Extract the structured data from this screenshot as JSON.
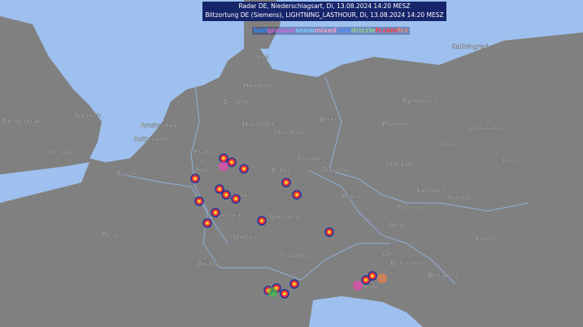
{
  "header": {
    "line1": "Radar DE, Niederschlagsart, Di, 13.08.2024 14:20 MESZ",
    "line2": "Blitzortung DE (Siemens), LIGHTNING_LASTHOUR, Di, 13.08.2024 14:20 MESZ"
  },
  "legend": [
    "hail",
    "graupel",
    "snow",
    "mixed",
    "rain",
    "drizzle",
    "fr.rain",
    "fr.r"
  ],
  "cities": [
    "Kiel",
    "Hamburg",
    "Bremen",
    "Hannover",
    "Berlin",
    "Amsterdam",
    "Rotterdam",
    "Magdeburg",
    "Leipzig",
    "Dresden",
    "Essen",
    "Köln",
    "Frankfurt",
    "Erfurt",
    "Mannheim",
    "Praha",
    "Nürnberg",
    "Stuttgart",
    "München",
    "Wien",
    "Bratislava",
    "Budapest",
    "Graz",
    "Brno",
    "Wroclaw",
    "Poznan",
    "Bydgoszcz",
    "Kaliningrad",
    "Warszawa",
    "Lodz",
    "Lublin",
    "Krakow",
    "Katowice",
    "Ostrava",
    "Kosice",
    "London",
    "Birmingham",
    "Norwich",
    "Brussel",
    "Paris",
    "Zürich"
  ]
}
